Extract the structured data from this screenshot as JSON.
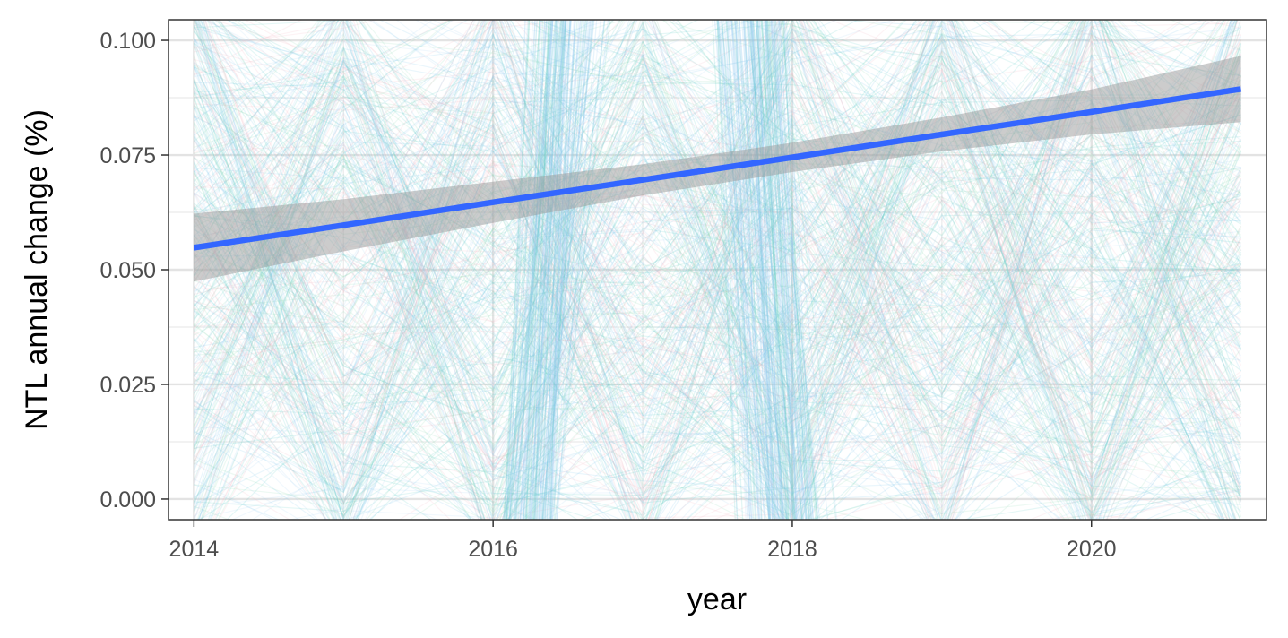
{
  "chart_data": {
    "type": "line",
    "xlabel": "year",
    "ylabel": "NTL annual change (%)",
    "xlim": [
      2013.83,
      2021.17
    ],
    "ylim": [
      -0.0045,
      0.1045
    ],
    "x_ticks": [
      2014,
      2016,
      2018,
      2020
    ],
    "x_tick_labels": [
      "2014",
      "2016",
      "2018",
      "2020"
    ],
    "y_ticks": [
      0,
      0.025,
      0.05,
      0.075,
      0.1
    ],
    "y_tick_labels": [
      "0.000",
      "0.025",
      "0.050",
      "0.075",
      "0.100"
    ],
    "grid": true,
    "series": [
      {
        "x": [
          2014,
          2015,
          2016,
          2017,
          2018,
          2019,
          2020,
          2021
        ],
        "y": [
          0.0548,
          0.0597,
          0.0647,
          0.0696,
          0.0745,
          0.0795,
          0.0844,
          0.0894
        ],
        "ci_low": [
          0.0474,
          0.054,
          0.0602,
          0.0662,
          0.0713,
          0.0758,
          0.0795,
          0.0822
        ],
        "ci_high": [
          0.0622,
          0.0654,
          0.0692,
          0.073,
          0.0777,
          0.0832,
          0.0893,
          0.0966
        ],
        "color": "#3366FF"
      }
    ],
    "colors": {
      "fit_line": "#3366FF",
      "confidence_band": "#999999",
      "background_lines": [
        "#7fc4ef",
        "#5ccfc4",
        "#a9d4f5",
        "#f4b6c2",
        "#8fd9b6"
      ]
    }
  }
}
